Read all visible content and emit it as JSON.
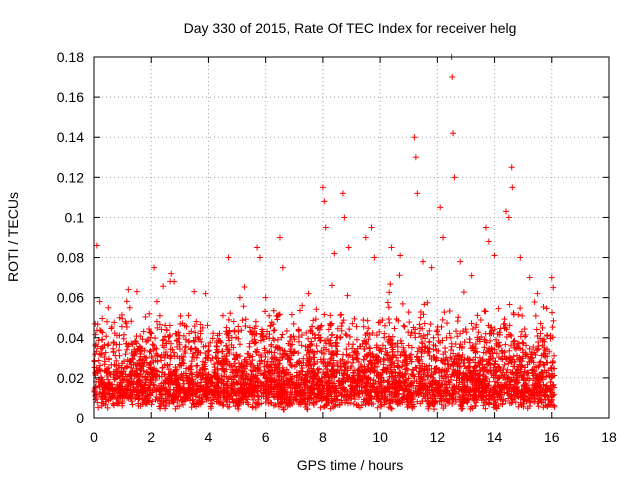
{
  "chart_data": {
    "type": "scatter",
    "title": "Day 330 of 2015, Rate Of TEC Index for receiver helg",
    "xlabel": "GPS time / hours",
    "ylabel": "ROTI / TECUs",
    "xlim": [
      0,
      18
    ],
    "ylim": [
      0,
      0.18
    ],
    "x_ticks": [
      0,
      2,
      4,
      6,
      8,
      10,
      12,
      14,
      16,
      18
    ],
    "y_ticks": [
      0,
      0.02,
      0.04,
      0.06,
      0.08,
      0.1,
      0.12,
      0.14,
      0.16,
      0.18
    ],
    "x_tick_labels": [
      "0",
      "2",
      "4",
      "6",
      "8",
      "10",
      "12",
      "14",
      "16",
      "18"
    ],
    "y_tick_labels": [
      "0",
      "0.02",
      "0.04",
      "0.06",
      "0.08",
      "0.1",
      "0.12",
      "0.14",
      "0.16",
      "0.18"
    ],
    "grid": true,
    "marker": "+",
    "marker_color": "#ff0000",
    "data_x_range": [
      0,
      16.1
    ],
    "series": [
      {
        "name": "ROTI",
        "points": [
          [
            0.1,
            0.086
          ],
          [
            0.2,
            0.058
          ],
          [
            0.5,
            0.055
          ],
          [
            0.9,
            0.05
          ],
          [
            1.1,
            0.048
          ],
          [
            1.2,
            0.064
          ],
          [
            1.5,
            0.063
          ],
          [
            2.1,
            0.075
          ],
          [
            2.2,
            0.058
          ],
          [
            2.7,
            0.072
          ],
          [
            2.8,
            0.068
          ],
          [
            3.5,
            0.063
          ],
          [
            3.9,
            0.062
          ],
          [
            4.7,
            0.08
          ],
          [
            5.1,
            0.06
          ],
          [
            5.7,
            0.085
          ],
          [
            5.8,
            0.08
          ],
          [
            6.0,
            0.06
          ],
          [
            6.5,
            0.09
          ],
          [
            6.6,
            0.075
          ],
          [
            7.5,
            0.062
          ],
          [
            8.0,
            0.115
          ],
          [
            8.05,
            0.108
          ],
          [
            8.1,
            0.095
          ],
          [
            8.4,
            0.082
          ],
          [
            8.7,
            0.112
          ],
          [
            8.75,
            0.1
          ],
          [
            8.9,
            0.085
          ],
          [
            9.5,
            0.09
          ],
          [
            9.7,
            0.095
          ],
          [
            9.8,
            0.08
          ],
          [
            10.4,
            0.085
          ],
          [
            10.7,
            0.081
          ],
          [
            11.2,
            0.14
          ],
          [
            11.25,
            0.13
          ],
          [
            11.3,
            0.112
          ],
          [
            11.5,
            0.078
          ],
          [
            11.8,
            0.075
          ],
          [
            12.1,
            0.105
          ],
          [
            12.2,
            0.09
          ],
          [
            12.5,
            0.18
          ],
          [
            12.52,
            0.17
          ],
          [
            12.55,
            0.142
          ],
          [
            12.6,
            0.12
          ],
          [
            12.8,
            0.078
          ],
          [
            13.2,
            0.071
          ],
          [
            13.7,
            0.095
          ],
          [
            13.8,
            0.088
          ],
          [
            14.0,
            0.081
          ],
          [
            14.4,
            0.103
          ],
          [
            14.6,
            0.125
          ],
          [
            14.62,
            0.115
          ],
          [
            14.5,
            0.1
          ],
          [
            14.9,
            0.08
          ],
          [
            15.5,
            0.062
          ],
          [
            16.0,
            0.07
          ],
          [
            16.05,
            0.065
          ]
        ]
      }
    ]
  }
}
